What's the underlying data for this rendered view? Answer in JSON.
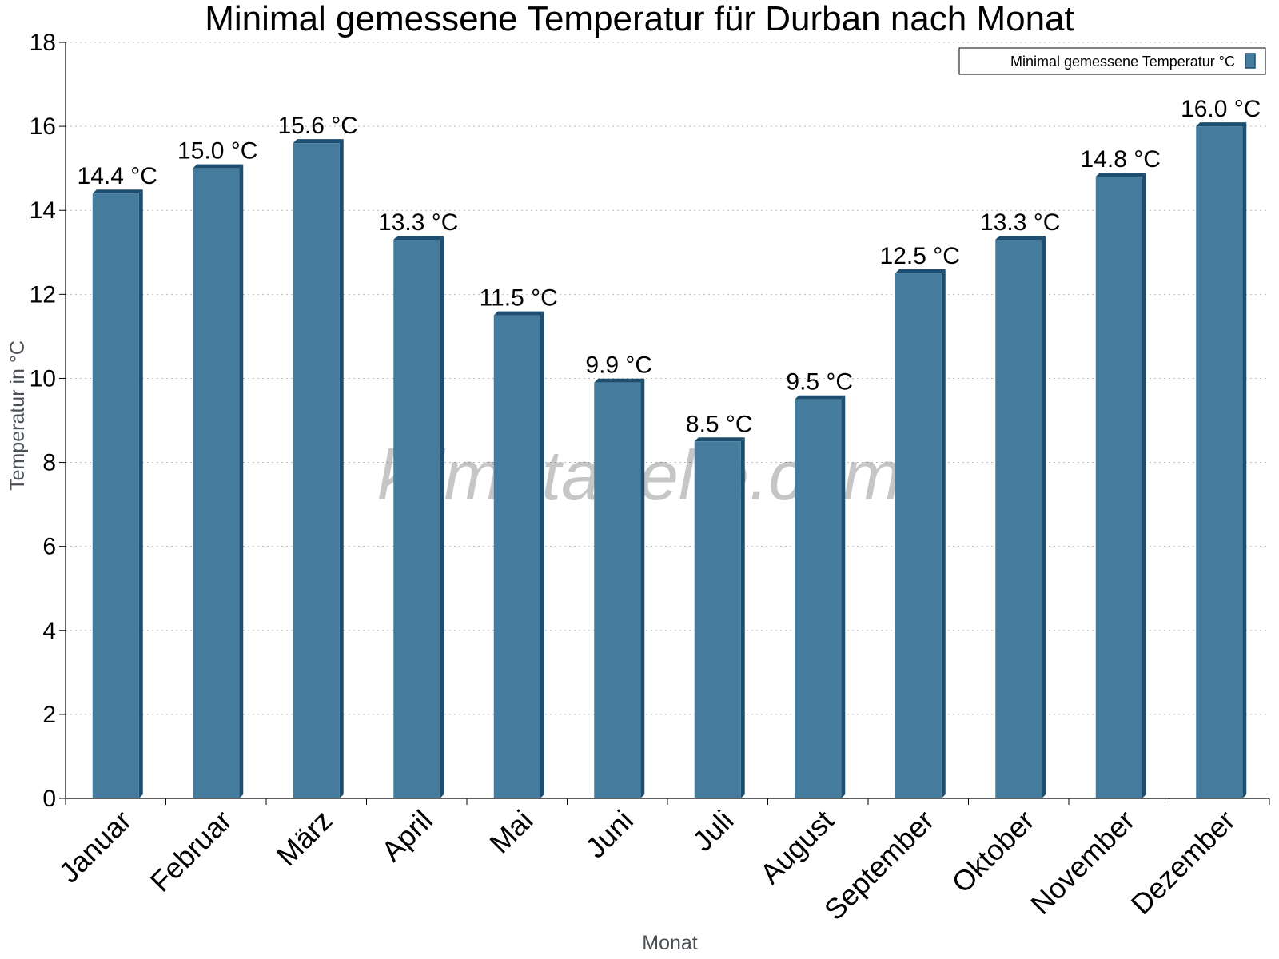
{
  "chart_data": {
    "type": "bar",
    "title": "Minimal gemessene Temperatur für Durban nach Monat",
    "xlabel": "Monat",
    "ylabel": "Temperatur in °C",
    "categories": [
      "Januar",
      "Februar",
      "März",
      "April",
      "Mai",
      "Juni",
      "Juli",
      "August",
      "September",
      "Oktober",
      "November",
      "Dezember"
    ],
    "series": [
      {
        "name": "Minimal gemessene Temperatur °C",
        "values": [
          14.4,
          15.0,
          15.6,
          13.3,
          11.5,
          9.9,
          8.5,
          9.5,
          12.5,
          13.3,
          14.8,
          16.0
        ],
        "labels": [
          "14.4 °C",
          "15.0 °C",
          "15.6 °C",
          "13.3 °C",
          "11.5 °C",
          "9.9 °C",
          "8.5 °C",
          "9.5 °C",
          "12.5 °C",
          "13.3 °C",
          "14.8 °C",
          "16.0 °C"
        ],
        "color": "#457b9d",
        "shade_color": "#1d4e6f"
      }
    ],
    "ylim": [
      0,
      18
    ],
    "yticks": [
      0,
      2,
      4,
      6,
      8,
      10,
      12,
      14,
      16,
      18
    ],
    "grid": true,
    "legend_position": "top-right",
    "watermark": "klimatabelle.com"
  }
}
